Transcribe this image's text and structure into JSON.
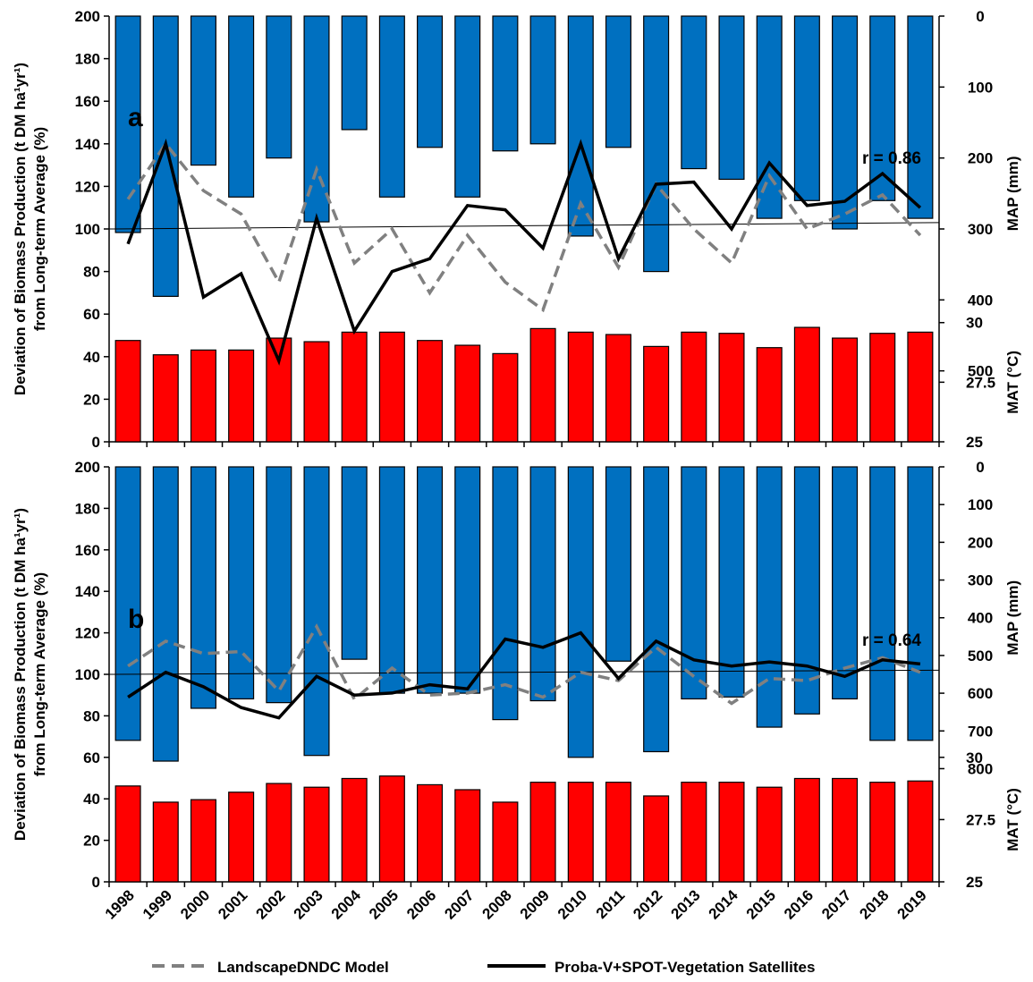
{
  "chart_data": [
    {
      "type": "bar+line",
      "panel_label": "a",
      "annotation": "r = 0.86",
      "ylabel_line1": "Deviation of Biomass Production (t DM ha¹yr¹)",
      "ylabel_line2": "from Long-term Average (%)",
      "ylim": [
        0,
        200
      ],
      "yticks": [
        "0",
        "20",
        "40",
        "60",
        "80",
        "100",
        "120",
        "140",
        "160",
        "180",
        "200"
      ],
      "right_map_label": "MAP (mm)",
      "right_map_ticks": [
        "0",
        "100",
        "200",
        "300",
        "400",
        "500"
      ],
      "right_mat_label": "MAT (°C)",
      "right_mat_ticks": [
        "25",
        "27.5",
        "30"
      ],
      "categories": [
        "1998",
        "1999",
        "2000",
        "2001",
        "2002",
        "2003",
        "2004",
        "2005",
        "2006",
        "2007",
        "2008",
        "2009",
        "2010",
        "2011",
        "2012",
        "2013",
        "2014",
        "2015",
        "2016",
        "2017",
        "2018",
        "2019"
      ],
      "map_mm": [
        305,
        395,
        210,
        255,
        200,
        290,
        160,
        255,
        185,
        255,
        190,
        180,
        310,
        185,
        360,
        215,
        230,
        285,
        260,
        300,
        260,
        285
      ],
      "mat_c": [
        29.25,
        28.65,
        28.85,
        28.85,
        29.35,
        29.2,
        29.6,
        29.6,
        29.25,
        29.05,
        28.7,
        29.75,
        29.6,
        29.5,
        29.0,
        29.6,
        29.55,
        28.95,
        29.8,
        29.35,
        29.55,
        29.6
      ],
      "series": [
        {
          "name": "LandscapeDNDC Model",
          "style": "dashed",
          "color": "#808080",
          "values": [
            114,
            140,
            118,
            107,
            75,
            128,
            84,
            100,
            70,
            97,
            75,
            62,
            112,
            82,
            121,
            100,
            84,
            125,
            100,
            107,
            116,
            97
          ]
        },
        {
          "name": "Proba-V+SPOT-Vegetation Satellites",
          "style": "solid",
          "color": "#000000",
          "values": [
            93,
            140,
            68,
            79,
            38,
            105,
            52,
            80,
            86,
            111,
            109,
            91,
            140,
            86,
            121,
            122,
            100,
            131,
            111,
            113,
            126,
            110
          ]
        }
      ],
      "trend": [
        100,
        103
      ]
    },
    {
      "type": "bar+line",
      "panel_label": "b",
      "annotation": "r = 0.64",
      "ylabel_line1": "Deviation of Biomass Production (t DM ha¹yr¹)",
      "ylabel_line2": "from Long-term Average (%)",
      "ylim": [
        0,
        200
      ],
      "yticks": [
        "0",
        "20",
        "40",
        "60",
        "80",
        "100",
        "120",
        "140",
        "160",
        "180",
        "200"
      ],
      "right_map_label": "MAP (mm)",
      "right_map_ticks": [
        "0",
        "100",
        "200",
        "300",
        "400",
        "500",
        "600",
        "700",
        "800"
      ],
      "right_mat_label": "MAT (°C)",
      "right_mat_ticks": [
        "25",
        "27.5",
        "30"
      ],
      "categories": [
        "1998",
        "1999",
        "2000",
        "2001",
        "2002",
        "2003",
        "2004",
        "2005",
        "2006",
        "2007",
        "2008",
        "2009",
        "2010",
        "2011",
        "2012",
        "2013",
        "2014",
        "2015",
        "2016",
        "2017",
        "2018",
        "2019"
      ],
      "map_mm": [
        725,
        780,
        640,
        615,
        625,
        765,
        510,
        600,
        600,
        600,
        670,
        620,
        770,
        515,
        755,
        615,
        610,
        690,
        655,
        615,
        725,
        725
      ],
      "mat_c": [
        28.85,
        28.2,
        28.3,
        28.6,
        28.95,
        28.8,
        29.15,
        29.25,
        28.9,
        28.7,
        28.2,
        29.0,
        29.0,
        29.0,
        28.45,
        29.0,
        29.0,
        28.8,
        29.15,
        29.15,
        29.0,
        29.05
      ],
      "series": [
        {
          "name": "LandscapeDNDC Model",
          "style": "dashed",
          "color": "#808080",
          "values": [
            104,
            116,
            110,
            111,
            92,
            123,
            88,
            103,
            90,
            91,
            95,
            89,
            101,
            97,
            113,
            99,
            86,
            98,
            97,
            103,
            108,
            101
          ]
        },
        {
          "name": "Proba-V+SPOT-Vegetation Satellites",
          "style": "solid",
          "color": "#000000",
          "values": [
            89,
            101,
            94,
            84,
            79,
            99,
            90,
            91,
            95,
            93,
            117,
            113,
            120,
            98,
            116,
            107,
            104,
            106,
            104,
            99,
            107,
            105
          ]
        }
      ],
      "trend": [
        100,
        102
      ]
    }
  ],
  "colors": {
    "map_bars": "#0070C0",
    "mat_bars": "#FF0000",
    "axis": "#000000"
  },
  "legend": {
    "model_label": "LandscapeDNDC Model",
    "satellite_label": "Proba-V+SPOT-Vegetation Satellites"
  }
}
